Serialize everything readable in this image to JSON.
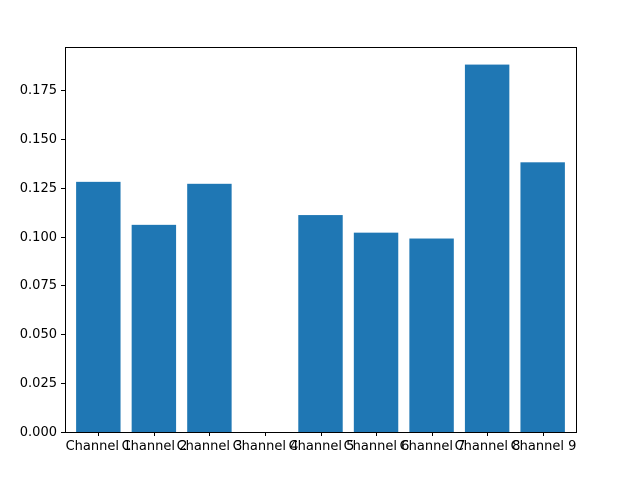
{
  "chart_data": {
    "type": "bar",
    "title": "",
    "xlabel": "",
    "ylabel": "",
    "categories": [
      "Channel 1",
      "Channel 2",
      "Channel 3",
      "Channel 4",
      "Channel 5",
      "Channel 6",
      "Channel 7",
      "Channel 8",
      "Channel 9"
    ],
    "values": [
      0.128,
      0.106,
      0.127,
      0.0,
      0.111,
      0.102,
      0.099,
      0.188,
      0.138
    ],
    "ylim": [
      0,
      0.197
    ],
    "yticks": [
      0.0,
      0.025,
      0.05,
      0.075,
      0.1,
      0.125,
      0.15,
      0.175
    ],
    "ytick_labels": [
      "0.000",
      "0.025",
      "0.050",
      "0.075",
      "0.100",
      "0.125",
      "0.150",
      "0.175"
    ],
    "bar_color": "#1f77b4",
    "grid": false
  }
}
